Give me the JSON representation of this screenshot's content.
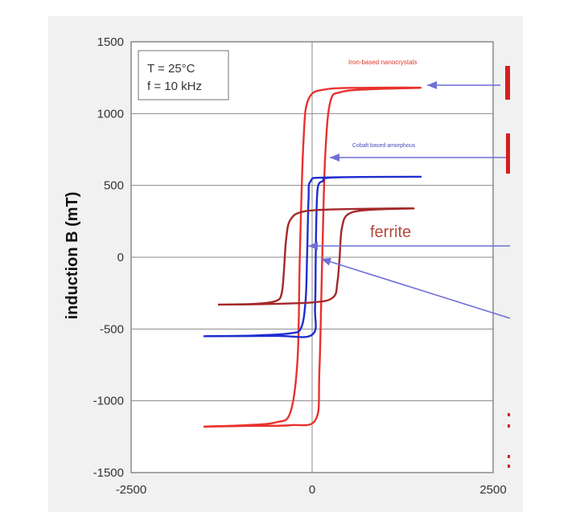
{
  "chart_data": {
    "type": "line",
    "title": "",
    "xlabel": "",
    "ylabel": "induction B (mT)",
    "xlim": [
      -2500,
      2500
    ],
    "ylim": [
      -1500,
      1500
    ],
    "x_ticks": [
      "-2500",
      "0",
      "2500"
    ],
    "y_ticks": [
      "1500",
      "1000",
      "500",
      "0",
      "-500",
      "-1000",
      "-1500"
    ],
    "grid": true,
    "conditions": [
      "T = 25°C",
      "f = 10 kHz"
    ],
    "annotations": {
      "iron": "Iron-based nanocrystals",
      "cobalt": "Cobalt based amorphous",
      "ferrite": "ferrite"
    },
    "colors": {
      "iron": "#e8322e",
      "cobalt": "#1f2ed0",
      "ferrite": "#a3282a",
      "arrow": "#6f6fd6",
      "grid": "#8a8a8a",
      "panel": "#f1f1f1"
    },
    "series": [
      {
        "color": "#e8322e",
        "loop": [
          [
            -1500,
            -1180
          ],
          [
            -900,
            -1170
          ],
          [
            -500,
            -1150
          ],
          [
            -300,
            -1080
          ],
          [
            -200,
            -700
          ],
          [
            -170,
            0
          ],
          [
            -120,
            800
          ],
          [
            -50,
            1100
          ],
          [
            200,
            1170
          ],
          [
            800,
            1180
          ],
          [
            1500,
            1180
          ],
          [
            800,
            1170
          ],
          [
            400,
            1150
          ],
          [
            250,
            1080
          ],
          [
            180,
            700
          ],
          [
            140,
            0
          ],
          [
            100,
            -800
          ],
          [
            50,
            -1130
          ],
          [
            -300,
            -1170
          ],
          [
            -900,
            -1175
          ],
          [
            -1500,
            -1180
          ]
        ]
      },
      {
        "color": "#1f2ed0",
        "loop": [
          [
            -1500,
            -550
          ],
          [
            -800,
            -545
          ],
          [
            -300,
            -530
          ],
          [
            -150,
            -490
          ],
          [
            -90,
            -300
          ],
          [
            -70,
            0
          ],
          [
            -50,
            400
          ],
          [
            -20,
            530
          ],
          [
            200,
            555
          ],
          [
            1500,
            560
          ],
          [
            300,
            555
          ],
          [
            150,
            530
          ],
          [
            80,
            490
          ],
          [
            60,
            300
          ],
          [
            50,
            0
          ],
          [
            40,
            -350
          ],
          [
            0,
            -540
          ],
          [
            -500,
            -548
          ],
          [
            -1500,
            -550
          ]
        ]
      },
      {
        "color": "#a3282a",
        "loop": [
          [
            -1300,
            -330
          ],
          [
            -800,
            -325
          ],
          [
            -500,
            -305
          ],
          [
            -420,
            -250
          ],
          [
            -390,
            -100
          ],
          [
            -360,
            120
          ],
          [
            -300,
            260
          ],
          [
            -100,
            320
          ],
          [
            500,
            335
          ],
          [
            1400,
            340
          ],
          [
            800,
            330
          ],
          [
            500,
            300
          ],
          [
            410,
            200
          ],
          [
            380,
            0
          ],
          [
            350,
            -170
          ],
          [
            290,
            -280
          ],
          [
            0,
            -315
          ],
          [
            -800,
            -328
          ],
          [
            -1300,
            -330
          ]
        ]
      }
    ]
  }
}
